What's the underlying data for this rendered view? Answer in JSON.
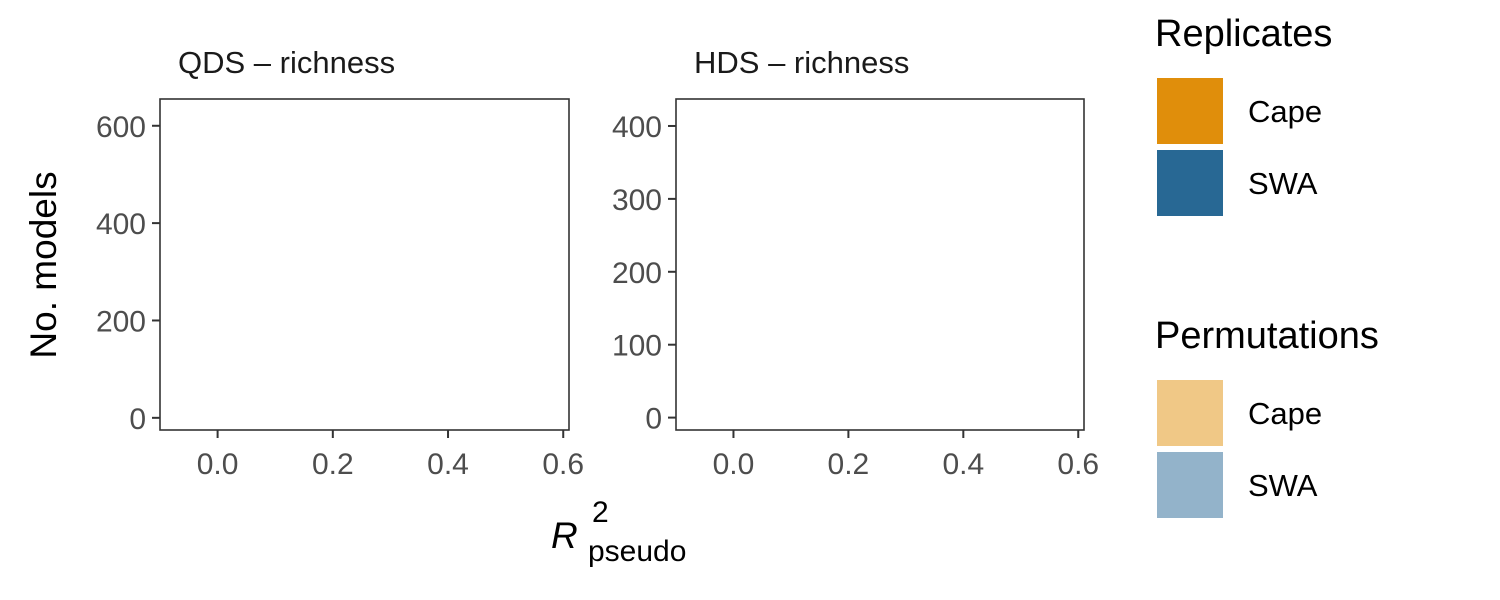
{
  "chart_data": [
    {
      "type": "bar",
      "title": "QDS – richness",
      "xlabel_main": "R",
      "xlabel_sup": "2",
      "xlabel_sub": "pseudo",
      "ylabel": "No. models",
      "xlim": [
        -0.1,
        0.61
      ],
      "ylim": [
        -25,
        655
      ],
      "xticks": [
        "0.0",
        "0.2",
        "0.4",
        "0.6"
      ],
      "yticks": [
        "0",
        "200",
        "400",
        "600"
      ],
      "series": []
    },
    {
      "type": "bar",
      "title": "HDS – richness",
      "xlim": [
        -0.1,
        0.61
      ],
      "ylim": [
        -17,
        437
      ],
      "xticks": [
        "0.0",
        "0.2",
        "0.4",
        "0.6"
      ],
      "yticks": [
        "0",
        "100",
        "200",
        "300",
        "400"
      ],
      "series": []
    }
  ],
  "legends": [
    {
      "title": "Replicates",
      "items": [
        {
          "label": "Cape",
          "color": "#E08E0B"
        },
        {
          "label": "SWA",
          "color": "#286894"
        }
      ]
    },
    {
      "title": "Permutations",
      "items": [
        {
          "label": "Cape",
          "color": "#F0C886"
        },
        {
          "label": "SWA",
          "color": "#93B3CA"
        }
      ]
    }
  ]
}
